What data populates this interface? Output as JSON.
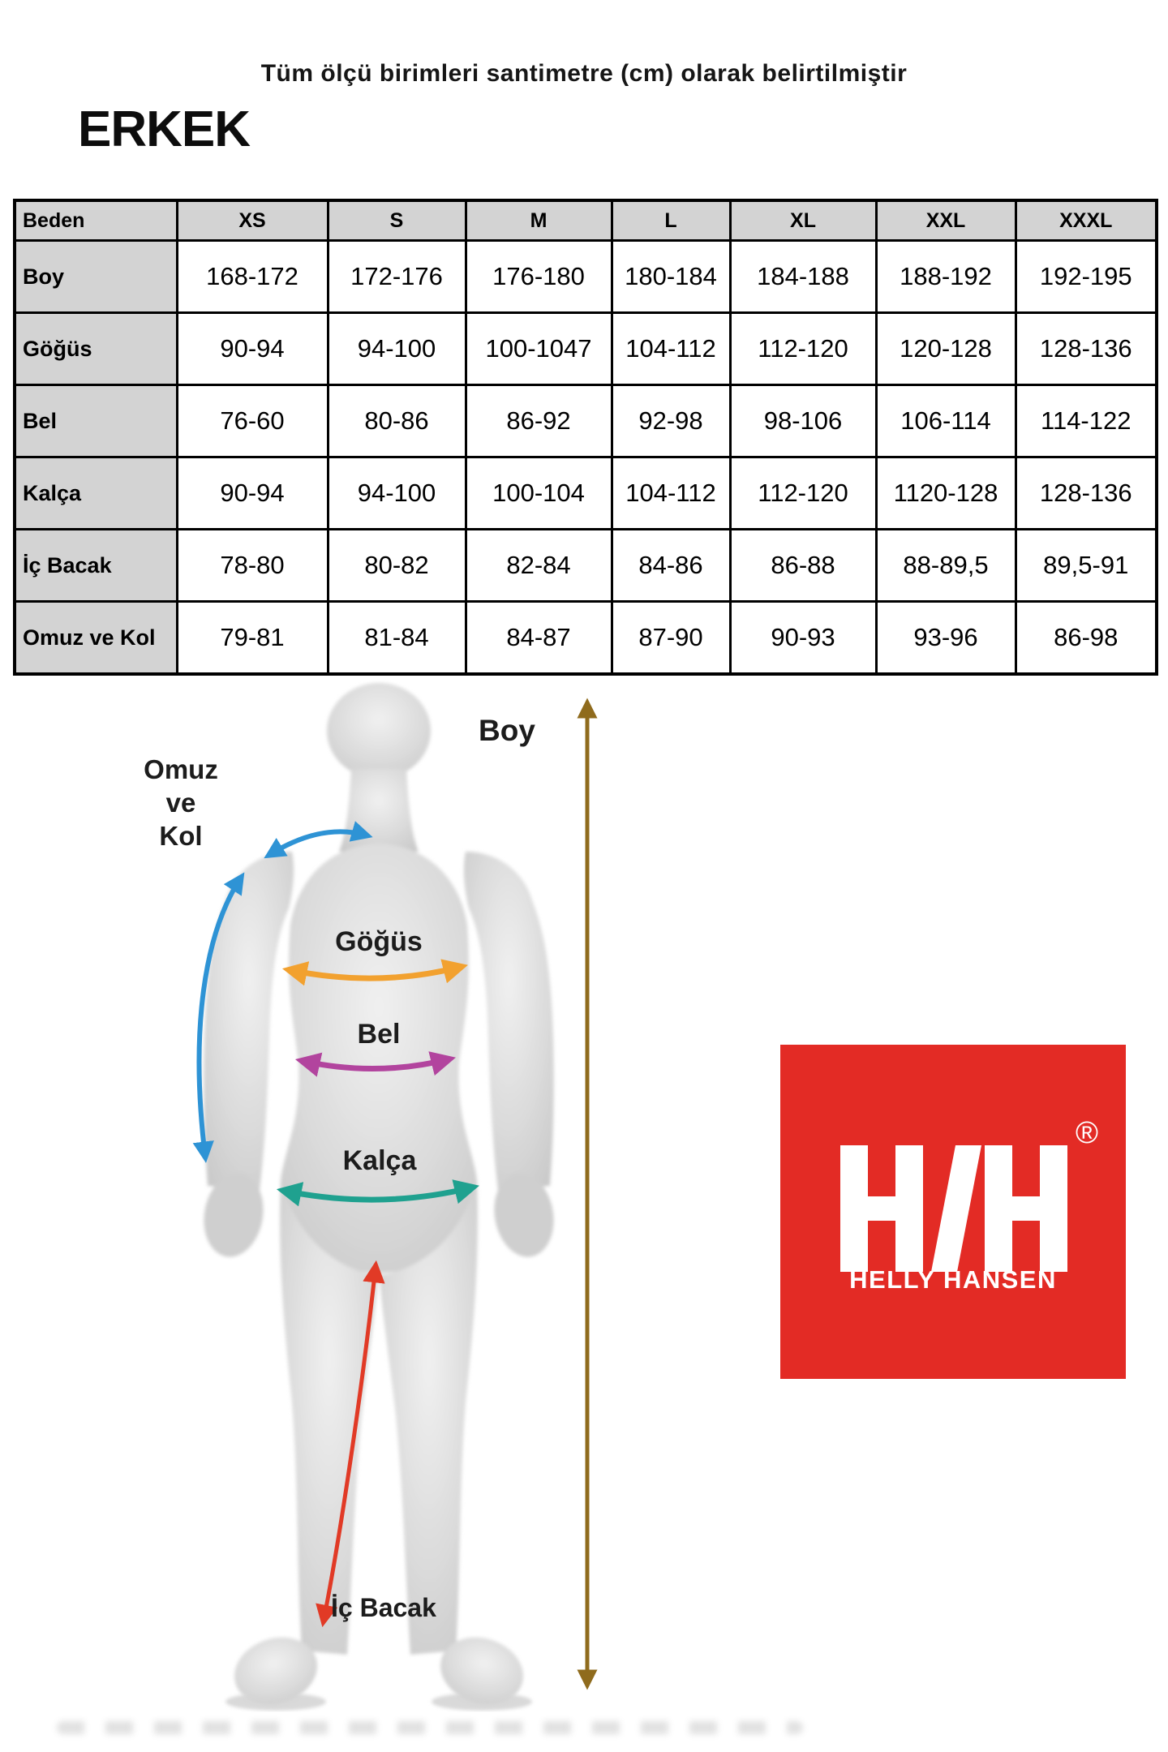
{
  "header": {
    "note": "Tüm ölçü birimleri santimetre (cm) olarak belirtilmiştir",
    "gender": "ERKEK"
  },
  "table": {
    "columns": [
      "Beden",
      "XS",
      "S",
      "M",
      "L",
      "XL",
      "XXL",
      "XXXL"
    ],
    "rows": [
      {
        "label": "Boy",
        "values": [
          "168-172",
          "172-176",
          "176-180",
          "180-184",
          "184-188",
          "188-192",
          "192-195"
        ]
      },
      {
        "label": "Göğüs",
        "values": [
          "90-94",
          "94-100",
          "100-1047",
          "104-112",
          "112-120",
          "120-128",
          "128-136"
        ]
      },
      {
        "label": "Bel",
        "values": [
          "76-60",
          "80-86",
          "86-92",
          "92-98",
          "98-106",
          "106-114",
          "114-122"
        ]
      },
      {
        "label": "Kalça",
        "values": [
          "90-94",
          "94-100",
          "100-104",
          "104-112",
          "112-120",
          "1120-128",
          "128-136"
        ]
      },
      {
        "label": "İç Bacak",
        "values": [
          "78-80",
          "80-82",
          "82-84",
          "84-86",
          "86-88",
          "88-89,5",
          "89,5-91"
        ]
      },
      {
        "label": "Omuz ve Kol",
        "values": [
          "79-81",
          "81-84",
          "84-87",
          "87-90",
          "90-93",
          "93-96",
          "86-98"
        ]
      }
    ]
  },
  "diagram": {
    "labels": {
      "boy": "Boy",
      "omuz": {
        "line1": "Omuz",
        "line2": "ve",
        "line3": "Kol"
      },
      "gogus": "Göğüs",
      "bel": "Bel",
      "kalca": "Kalça",
      "ic_bacak": "İç Bacak"
    }
  },
  "logo": {
    "brand": "HELLY HANSEN",
    "monogram": "H/H",
    "registered": "®"
  },
  "colors": {
    "logo_red": "#E32B25",
    "cell_gray": "#D3D3D3",
    "arrow_brown": "#8F6B1D",
    "arrow_blue": "#2E93D5",
    "arrow_orange": "#F2A12F",
    "arrow_magenta": "#B2449E",
    "arrow_teal": "#1FA18F",
    "arrow_red": "#E13A26",
    "silhouette_gray": "#D6D6D6"
  }
}
